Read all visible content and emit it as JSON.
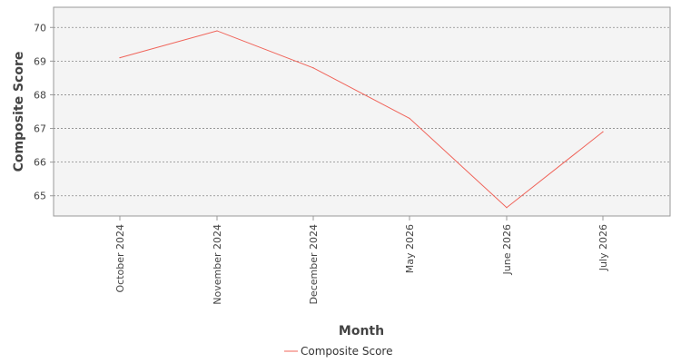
{
  "chart_data": {
    "type": "line",
    "categories": [
      "October 2024",
      "November 2024",
      "December 2024",
      "May 2026",
      "June 2026",
      "July 2026"
    ],
    "series": [
      {
        "name": "Composite Score",
        "values": [
          69.1,
          69.9,
          68.8,
          67.3,
          64.65,
          66.9
        ]
      }
    ],
    "xlabel": "Month",
    "ylabel": "Composite Score",
    "ylim": [
      64.4,
      70.6
    ],
    "yticks": [
      "65",
      "66",
      "67",
      "68",
      "69",
      "70"
    ],
    "grid": true,
    "legend_position": "bottom",
    "colors": {
      "series": "#f0645a",
      "plot_background": "#f4f4f4",
      "grid": "#888888",
      "axis": "#999999"
    }
  }
}
